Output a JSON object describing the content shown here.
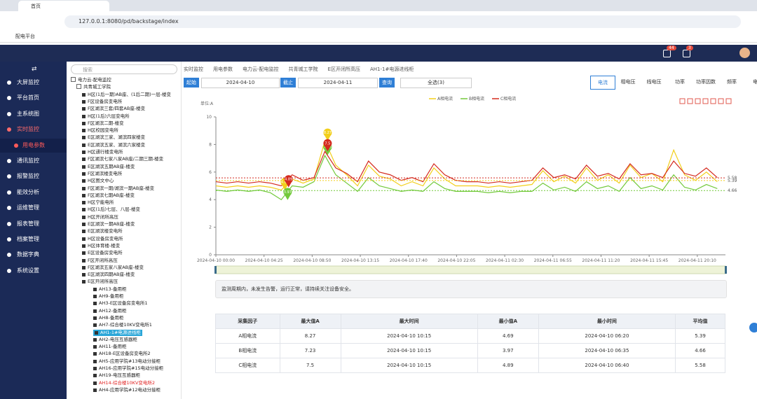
{
  "browser": {
    "tab": "首页",
    "url": "127.0.0.1:8080/pd/backstage/index",
    "bookmark": "配电平台"
  },
  "header": {
    "badges": [
      44,
      3
    ]
  },
  "sidebar": {
    "items": [
      {
        "label": "大屏监控"
      },
      {
        "label": "平台首页"
      },
      {
        "label": "主系统图"
      },
      {
        "label": "实时监控",
        "children": [
          "用电参数"
        ]
      },
      {
        "label": "通讯监控"
      },
      {
        "label": "报警监控"
      },
      {
        "label": "能效分析"
      },
      {
        "label": "运维管理"
      },
      {
        "label": "报表管理"
      },
      {
        "label": "档案管理"
      },
      {
        "label": "数据字典"
      },
      {
        "label": "系统设置"
      }
    ]
  },
  "tree": {
    "search_placeholder": "搜索",
    "root": "电力云-配电监控",
    "site": "共青城工学院",
    "groups": [
      "H区(1后一期)AB座、(1后二期)一层-楼变",
      "F区设备房变电所",
      "F区湖滨三套/四套AB座-楼变",
      "H区(1后)六层变电所",
      "F区湖滨二期-楼变",
      "H区校园变电所",
      "E区湖滨三家、湖滨四家楼变",
      "E区湖滨五家、湖滨六家楼变",
      "H区通行楼变电所",
      "F区湖滨七家八家AB座/二期三期-楼变",
      "E区湖滨五期AB座-楼变",
      "F区湖滨楼变电所",
      "H区图文中心",
      "F区湖滨一期/湖滨一期AB座-楼变",
      "F区湖滨七期AB座-楼变",
      "H区宁能电所",
      "H区(1后)七层、八层-楼变",
      "H区开闭所高压",
      "E区湖滨一期AB座-楼变",
      "E区湖滨楼变电所",
      "H区设备房变电所",
      "H区体育楼-楼变",
      "E区设备房变电所",
      "F区开闭所高压",
      "F区湖滨五家八家AB座-楼变",
      "E区湖滨四期AB座-楼变"
    ],
    "expanded": {
      "label": "E区开闭所高压",
      "children": [
        "AH13-备用柜",
        "AH9-备用柜",
        "AH3-E区设备房变电所1",
        "AH12-备用柜",
        "AH8-备用柜",
        "AH7-综合楼10KV变电所1",
        "AH1-1#电源进线柜",
        "AH2-电压互感器柜",
        "AH11-备用柜",
        "AH18-E区设备房变电所2",
        "AH5-应用学院#13电动分接柜",
        "AH16-应用学院#15电动分接柜",
        "AH19-电压互感器柜",
        "AH14-综合楼10KV变电所2",
        "AH4-应用学院#12电动分接柜"
      ]
    }
  },
  "breadcrumb": [
    "实时监控",
    "用电参数",
    "电力云-配电监控",
    "共青城工学院",
    "E区开闭所高压",
    "AH1-1#电源进线柜"
  ],
  "toolbar": {
    "start_label": "起始",
    "start": "2024-04-10",
    "end_label": "截止",
    "end": "2024-04-11",
    "query": "查询",
    "select": "全选(3)"
  },
  "tabs": [
    "电流",
    "相电压",
    "线电压",
    "功率",
    "功率因数",
    "频率",
    "电能"
  ],
  "chart_data": {
    "type": "line",
    "unit": "单位:A",
    "x": [
      0,
      1,
      2,
      3,
      4,
      5,
      6,
      7,
      8,
      9,
      10,
      11,
      12,
      13,
      14,
      15,
      16,
      17,
      18,
      19,
      20,
      21,
      22,
      23,
      24,
      25,
      26,
      27,
      28,
      29,
      30,
      31,
      32,
      33,
      34,
      35,
      36,
      37,
      38,
      39,
      40,
      41,
      42,
      43,
      44,
      45,
      46
    ],
    "xlim": [
      0,
      46.75
    ],
    "xticks": [
      {
        "value": 0,
        "label": "2024-04-10 00:00"
      },
      {
        "value": 4.4167,
        "label": "2024-04-10 04:25"
      },
      {
        "value": 8.8333,
        "label": "2024-04-10 08:50"
      },
      {
        "value": 13.25,
        "label": "2024-04-10 13:15"
      },
      {
        "value": 17.6667,
        "label": "2024-04-10 17:40"
      },
      {
        "value": 22.0833,
        "label": "2024-04-10 22:05"
      },
      {
        "value": 26.5,
        "label": "2024-04-11 02:30"
      },
      {
        "value": 30.9167,
        "label": "2024-04-11 06:55"
      },
      {
        "value": 35.3333,
        "label": "2024-04-11 11:20"
      },
      {
        "value": 39.75,
        "label": "2024-04-11 15:45"
      },
      {
        "value": 44.1667,
        "label": "2024-04-11 20:10"
      }
    ],
    "ylim": [
      0,
      10
    ],
    "yticks": [
      0,
      2,
      4,
      6,
      8,
      10
    ],
    "series": [
      {
        "name": "A相电流",
        "color": "#f2cf1b",
        "values": [
          5.0,
          4.9,
          5.0,
          4.9,
          5.0,
          4.9,
          4.7,
          5.5,
          5.2,
          5.5,
          8.27,
          6.5,
          5.8,
          5.0,
          6.5,
          5.7,
          5.5,
          5.0,
          5.3,
          5.0,
          6.3,
          5.5,
          5.0,
          5.0,
          5.0,
          4.9,
          5.0,
          4.9,
          5.0,
          5.1,
          6.1,
          5.3,
          5.7,
          5.2,
          6.3,
          5.4,
          5.8,
          5.2,
          6.5,
          5.6,
          5.9,
          5.3,
          7.6,
          5.8,
          5.4,
          6.0,
          5.3
        ]
      },
      {
        "name": "B相电流",
        "color": "#72c93a",
        "values": [
          4.7,
          4.6,
          4.7,
          4.6,
          4.7,
          4.5,
          4.0,
          5.0,
          4.9,
          5.3,
          7.2,
          5.8,
          5.2,
          4.6,
          5.6,
          5.0,
          4.8,
          4.6,
          4.7,
          4.6,
          5.3,
          4.8,
          4.6,
          4.6,
          4.6,
          4.5,
          4.6,
          4.5,
          4.6,
          4.6,
          5.2,
          4.7,
          4.9,
          4.6,
          5.3,
          4.8,
          5.0,
          4.6,
          5.6,
          4.8,
          5.0,
          4.7,
          5.8,
          4.9,
          4.7,
          5.1,
          4.8
        ]
      },
      {
        "name": "C相电流",
        "color": "#d42a1e",
        "values": [
          5.3,
          5.2,
          5.3,
          5.2,
          5.3,
          5.2,
          5.0,
          5.8,
          5.4,
          5.6,
          7.5,
          6.3,
          5.9,
          5.3,
          6.8,
          6.0,
          5.8,
          5.4,
          5.6,
          5.3,
          6.6,
          5.8,
          5.4,
          5.3,
          5.3,
          5.2,
          5.3,
          5.2,
          5.3,
          5.4,
          6.3,
          5.6,
          5.8,
          5.5,
          6.5,
          5.7,
          5.9,
          5.5,
          6.6,
          5.8,
          5.9,
          5.6,
          6.8,
          5.9,
          5.7,
          6.3,
          5.6
        ]
      }
    ]
  },
  "notice": "监测周期内，未发生告警，运行正常，请持续关注设备安全。",
  "table": {
    "header": [
      "采集因子",
      "最大值A",
      "最大时间",
      "最小值A",
      "最小时间",
      "平均值"
    ],
    "rows": [
      [
        "A相电流",
        8.27,
        "2024-04-10 10:15",
        4.69,
        "2024-04-10 06:20",
        5.39
      ],
      [
        "B相电流",
        7.23,
        "2024-04-10 10:15",
        3.97,
        "2024-04-10 06:35",
        4.66
      ],
      [
        "C相电流",
        7.5,
        "2024-04-10 10:15",
        4.89,
        "2024-04-10 06:40",
        5.58
      ]
    ]
  }
}
